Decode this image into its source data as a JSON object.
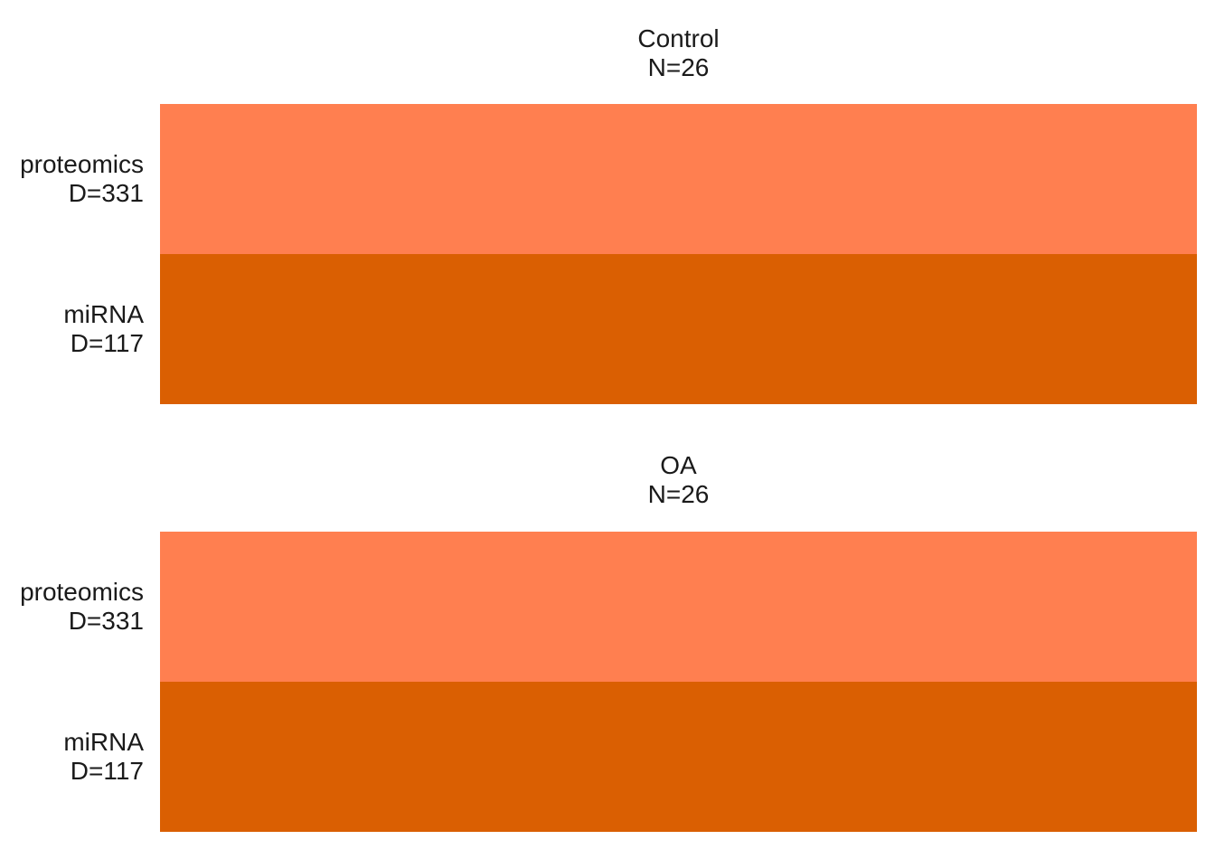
{
  "chart_data": {
    "type": "heatmap",
    "panels": [
      {
        "group": "Control",
        "n_label": "N=26",
        "rows": [
          {
            "name": "proteomics",
            "d_label": "D=331",
            "color": "#FF7F50"
          },
          {
            "name": "miRNA",
            "d_label": "D=117",
            "color": "#DA5F02"
          }
        ]
      },
      {
        "group": "OA",
        "n_label": "N=26",
        "rows": [
          {
            "name": "proteomics",
            "d_label": "D=331",
            "color": "#FF7F50"
          },
          {
            "name": "miRNA",
            "d_label": "D=117",
            "color": "#DA5F02"
          }
        ]
      }
    ]
  }
}
